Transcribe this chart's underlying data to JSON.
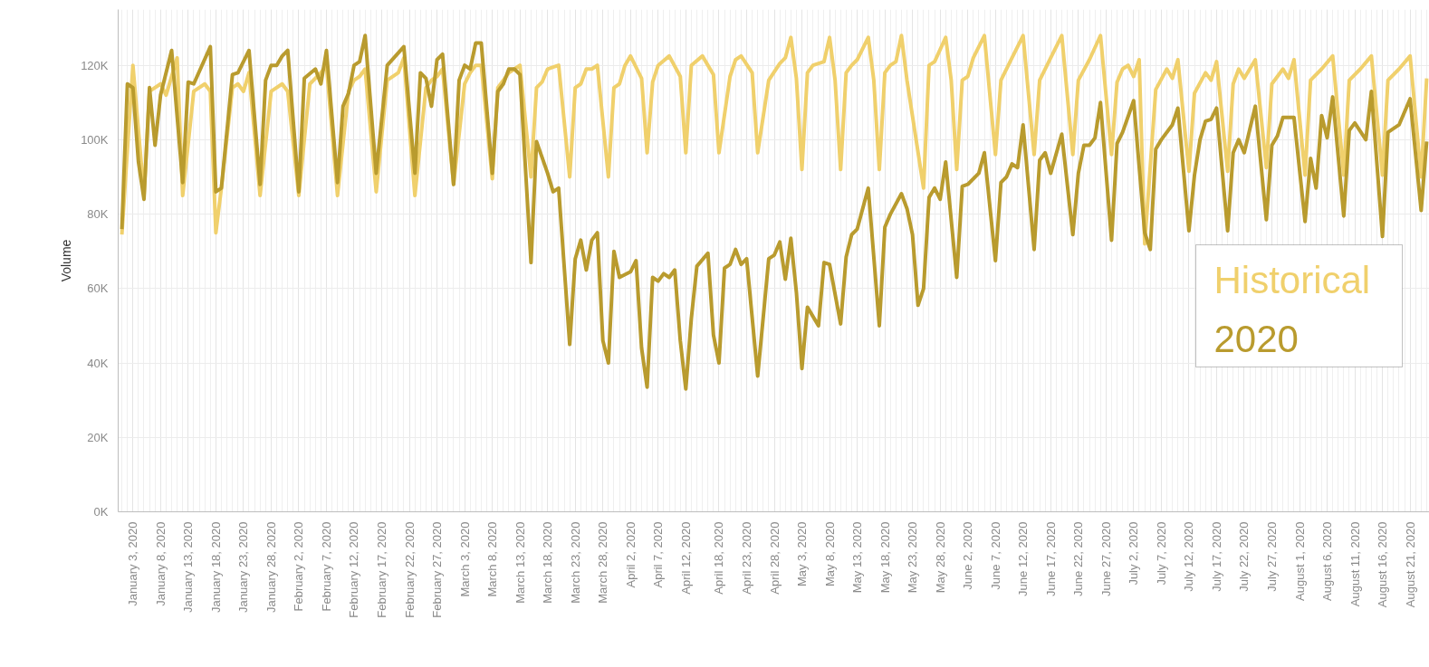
{
  "chart_data": {
    "type": "line",
    "ylabel": "Volume",
    "ylim": [
      0,
      135
    ],
    "yticks": [
      {
        "value": 0,
        "label": "0K"
      },
      {
        "value": 20,
        "label": "20K"
      },
      {
        "value": 40,
        "label": "40K"
      },
      {
        "value": 60,
        "label": "60K"
      },
      {
        "value": 80,
        "label": "80K"
      },
      {
        "value": 100,
        "label": "100K"
      },
      {
        "value": 120,
        "label": "120K"
      }
    ],
    "xlim": [
      "2019-12-31T08:00",
      "2020-08-24T12:00"
    ],
    "xticks": [
      {
        "value": "2020-01-03",
        "label": "January 3, 2020"
      },
      {
        "value": "2020-01-08",
        "label": "January 8, 2020"
      },
      {
        "value": "2020-01-13",
        "label": "January 13, 2020"
      },
      {
        "value": "2020-01-18",
        "label": "January 18, 2020"
      },
      {
        "value": "2020-01-23",
        "label": "January 23, 2020"
      },
      {
        "value": "2020-01-28",
        "label": "January 28, 2020"
      },
      {
        "value": "2020-02-02",
        "label": "February 2, 2020"
      },
      {
        "value": "2020-02-07",
        "label": "February 7, 2020"
      },
      {
        "value": "2020-02-12",
        "label": "February 12, 2020"
      },
      {
        "value": "2020-02-17",
        "label": "February 17, 2020"
      },
      {
        "value": "2020-02-22",
        "label": "February 22, 2020"
      },
      {
        "value": "2020-02-27",
        "label": "February 27, 2020"
      },
      {
        "value": "2020-03-03",
        "label": "March 3, 2020"
      },
      {
        "value": "2020-03-08",
        "label": "March 8, 2020"
      },
      {
        "value": "2020-03-13",
        "label": "March 13, 2020"
      },
      {
        "value": "2020-03-18",
        "label": "March 18, 2020"
      },
      {
        "value": "2020-03-23",
        "label": "March 23, 2020"
      },
      {
        "value": "2020-03-28",
        "label": "March 28, 2020"
      },
      {
        "value": "2020-04-02",
        "label": "April 2, 2020"
      },
      {
        "value": "2020-04-07",
        "label": "April 7, 2020"
      },
      {
        "value": "2020-04-12",
        "label": "April 12, 2020"
      },
      {
        "value": "2020-04-18",
        "label": "April 18, 2020"
      },
      {
        "value": "2020-04-23",
        "label": "April 23, 2020"
      },
      {
        "value": "2020-04-28",
        "label": "April 28, 2020"
      },
      {
        "value": "2020-05-03",
        "label": "May 3, 2020"
      },
      {
        "value": "2020-05-08",
        "label": "May 8, 2020"
      },
      {
        "value": "2020-05-13",
        "label": "May 13, 2020"
      },
      {
        "value": "2020-05-18",
        "label": "May 18, 2020"
      },
      {
        "value": "2020-05-23",
        "label": "May 23, 2020"
      },
      {
        "value": "2020-05-28",
        "label": "May 28, 2020"
      },
      {
        "value": "2020-06-02",
        "label": "June 2, 2020"
      },
      {
        "value": "2020-06-07",
        "label": "June 7, 2020"
      },
      {
        "value": "2020-06-12",
        "label": "June 12, 2020"
      },
      {
        "value": "2020-06-17",
        "label": "June 17, 2020"
      },
      {
        "value": "2020-06-22",
        "label": "June 22, 2020"
      },
      {
        "value": "2020-06-27",
        "label": "June 27, 2020"
      },
      {
        "value": "2020-07-02",
        "label": "July 2, 2020"
      },
      {
        "value": "2020-07-07",
        "label": "July 7, 2020"
      },
      {
        "value": "2020-07-12",
        "label": "July 12, 2020"
      },
      {
        "value": "2020-07-17",
        "label": "July 17, 2020"
      },
      {
        "value": "2020-07-22",
        "label": "July 22, 2020"
      },
      {
        "value": "2020-07-27",
        "label": "July 27, 2020"
      },
      {
        "value": "2020-08-01",
        "label": "August 1, 2020"
      },
      {
        "value": "2020-08-06",
        "label": "August 6, 2020"
      },
      {
        "value": "2020-08-11",
        "label": "August 11, 2020"
      },
      {
        "value": "2020-08-16",
        "label": "August 16, 2020"
      },
      {
        "value": "2020-08-21",
        "label": "August 21, 2020"
      }
    ],
    "grid": true,
    "legend": "right",
    "line_style": "solid",
    "marker": "none",
    "series": [
      {
        "name": "Historical",
        "color": "#f0d06c",
        "x": [
          "2020-01-01",
          "2020-01-03",
          "2020-01-05",
          "2020-01-06",
          "2020-01-08",
          "2020-01-09",
          "2020-01-11",
          "2020-01-12",
          "2020-01-14",
          "2020-01-16",
          "2020-01-17",
          "2020-01-18",
          "2020-01-19",
          "2020-01-21",
          "2020-01-22",
          "2020-01-23",
          "2020-01-24",
          "2020-01-26",
          "2020-01-28",
          "2020-01-30",
          "2020-01-31",
          "2020-02-02",
          "2020-02-04",
          "2020-02-06",
          "2020-02-07",
          "2020-02-09",
          "2020-02-11",
          "2020-02-12",
          "2020-02-13",
          "2020-02-14",
          "2020-02-16",
          "2020-02-18",
          "2020-02-20",
          "2020-02-21",
          "2020-02-23",
          "2020-02-25",
          "2020-02-26",
          "2020-02-27",
          "2020-02-28",
          "2020-03-01",
          "2020-03-03",
          "2020-03-04",
          "2020-03-05",
          "2020-03-06",
          "2020-03-08",
          "2020-03-09",
          "2020-03-10",
          "2020-03-11",
          "2020-03-12",
          "2020-03-13",
          "2020-03-15",
          "2020-03-16",
          "2020-03-17",
          "2020-03-18",
          "2020-03-19",
          "2020-03-20",
          "2020-03-22",
          "2020-03-23",
          "2020-03-24",
          "2020-03-25",
          "2020-03-26",
          "2020-03-27",
          "2020-03-29",
          "2020-03-30",
          "2020-03-31",
          "2020-04-01",
          "2020-04-02",
          "2020-04-04",
          "2020-04-05",
          "2020-04-06",
          "2020-04-07",
          "2020-04-09",
          "2020-04-11",
          "2020-04-12",
          "2020-04-13",
          "2020-04-15",
          "2020-04-17",
          "2020-04-18",
          "2020-04-20",
          "2020-04-21",
          "2020-04-22",
          "2020-04-24",
          "2020-04-25",
          "2020-04-27",
          "2020-04-29",
          "2020-04-30",
          "2020-05-01",
          "2020-05-02",
          "2020-05-03",
          "2020-05-04",
          "2020-05-05",
          "2020-05-07",
          "2020-05-08",
          "2020-05-09",
          "2020-05-10",
          "2020-05-11",
          "2020-05-12",
          "2020-05-13",
          "2020-05-15",
          "2020-05-16",
          "2020-05-17",
          "2020-05-18",
          "2020-05-19",
          "2020-05-20",
          "2020-05-21",
          "2020-05-22",
          "2020-05-25",
          "2020-05-26",
          "2020-05-27",
          "2020-05-29",
          "2020-05-30",
          "2020-05-31",
          "2020-06-01",
          "2020-06-02",
          "2020-06-03",
          "2020-06-05",
          "2020-06-07",
          "2020-06-08",
          "2020-06-10",
          "2020-06-12",
          "2020-06-14",
          "2020-06-15",
          "2020-06-17",
          "2020-06-19",
          "2020-06-21",
          "2020-06-22",
          "2020-06-24",
          "2020-06-26",
          "2020-06-28",
          "2020-06-29",
          "2020-06-30",
          "2020-07-01",
          "2020-07-02",
          "2020-07-03",
          "2020-07-04",
          "2020-07-06",
          "2020-07-08",
          "2020-07-09",
          "2020-07-10",
          "2020-07-12",
          "2020-07-13",
          "2020-07-15",
          "2020-07-16",
          "2020-07-17",
          "2020-07-19",
          "2020-07-20",
          "2020-07-21",
          "2020-07-22",
          "2020-07-24",
          "2020-07-26",
          "2020-07-27",
          "2020-07-29",
          "2020-07-30",
          "2020-07-31",
          "2020-08-02",
          "2020-08-03",
          "2020-08-05",
          "2020-08-07",
          "2020-08-09",
          "2020-08-10",
          "2020-08-12",
          "2020-08-14",
          "2020-08-16",
          "2020-08-17",
          "2020-08-19",
          "2020-08-21",
          "2020-08-23",
          "2020-08-24"
        ],
        "values": [
          74.5,
          120,
          85,
          113,
          115,
          112,
          122,
          85,
          113,
          115,
          113,
          75,
          87,
          114,
          115,
          113,
          118,
          85,
          113,
          115,
          113,
          85,
          115,
          118,
          120,
          85,
          113,
          116,
          117,
          119,
          86,
          116,
          118,
          122,
          85,
          114,
          116,
          117,
          119,
          88,
          115,
          118,
          120,
          120,
          89.5,
          114,
          116,
          118,
          119,
          120,
          90,
          114,
          115.5,
          119,
          119.5,
          120,
          90,
          114,
          115,
          119,
          119,
          120,
          90,
          114,
          115,
          120,
          122.5,
          116.5,
          96.5,
          115.5,
          120,
          122.5,
          117,
          96.5,
          120,
          122.5,
          117.5,
          96.5,
          117,
          121.5,
          122.5,
          118,
          96.5,
          116,
          120.5,
          122,
          127.5,
          116.5,
          92,
          118,
          120,
          121,
          127.5,
          116,
          92,
          118,
          120,
          121.5,
          127.5,
          116,
          92,
          118,
          120,
          121,
          128,
          116,
          87,
          120,
          121,
          127.5,
          116,
          92,
          116,
          117,
          122,
          128,
          96,
          116,
          122,
          128,
          96,
          116,
          122,
          128,
          96,
          116,
          121.5,
          128,
          96,
          115.5,
          119,
          120,
          117,
          121.5,
          72,
          113.5,
          119,
          116.5,
          121.5,
          91.5,
          112.5,
          118,
          116,
          121,
          91.5,
          115,
          119,
          116.5,
          121.5,
          92.5,
          115,
          119,
          116.5,
          121.5,
          90.5,
          116,
          119,
          122.5,
          90.5,
          116,
          119,
          122.5,
          90.5,
          116,
          119,
          122.5,
          90,
          116.5
        ]
      },
      {
        "name": "2020",
        "color": "#b99b2e",
        "x": [
          "2020-01-01",
          "2020-01-02",
          "2020-01-03",
          "2020-01-04",
          "2020-01-05",
          "2020-01-06",
          "2020-01-07",
          "2020-01-08",
          "2020-01-10",
          "2020-01-12",
          "2020-01-13",
          "2020-01-14",
          "2020-01-17",
          "2020-01-18",
          "2020-01-19",
          "2020-01-21",
          "2020-01-22",
          "2020-01-24",
          "2020-01-26",
          "2020-01-27",
          "2020-01-28",
          "2020-01-29",
          "2020-01-30",
          "2020-01-31",
          "2020-02-02",
          "2020-02-03",
          "2020-02-05",
          "2020-02-06",
          "2020-02-07",
          "2020-02-09",
          "2020-02-10",
          "2020-02-11",
          "2020-02-12",
          "2020-02-13",
          "2020-02-14",
          "2020-02-16",
          "2020-02-18",
          "2020-02-21",
          "2020-02-23",
          "2020-02-24",
          "2020-02-25",
          "2020-02-26",
          "2020-02-27",
          "2020-02-28",
          "2020-03-01",
          "2020-03-02",
          "2020-03-03",
          "2020-03-04",
          "2020-03-05",
          "2020-03-06",
          "2020-03-08",
          "2020-03-09",
          "2020-03-10",
          "2020-03-11",
          "2020-03-12",
          "2020-03-13",
          "2020-03-15",
          "2020-03-16",
          "2020-03-18",
          "2020-03-19",
          "2020-03-20",
          "2020-03-22",
          "2020-03-23",
          "2020-03-24",
          "2020-03-25",
          "2020-03-26",
          "2020-03-27",
          "2020-03-28",
          "2020-03-29",
          "2020-03-30",
          "2020-03-31",
          "2020-04-02",
          "2020-04-03",
          "2020-04-04",
          "2020-04-05",
          "2020-04-06",
          "2020-04-07",
          "2020-04-08",
          "2020-04-09",
          "2020-04-10",
          "2020-04-11",
          "2020-04-12",
          "2020-04-13",
          "2020-04-14",
          "2020-04-16",
          "2020-04-17",
          "2020-04-18",
          "2020-04-19",
          "2020-04-20",
          "2020-04-21",
          "2020-04-22",
          "2020-04-23",
          "2020-04-25",
          "2020-04-27",
          "2020-04-28",
          "2020-04-29",
          "2020-04-30",
          "2020-05-01",
          "2020-05-02",
          "2020-05-03",
          "2020-05-04",
          "2020-05-06",
          "2020-05-07",
          "2020-05-08",
          "2020-05-10",
          "2020-05-11",
          "2020-05-12",
          "2020-05-13",
          "2020-05-15",
          "2020-05-17",
          "2020-05-18",
          "2020-05-19",
          "2020-05-21",
          "2020-05-22",
          "2020-05-23",
          "2020-05-24",
          "2020-05-25",
          "2020-05-26",
          "2020-05-27",
          "2020-05-28",
          "2020-05-29",
          "2020-05-31",
          "2020-06-01",
          "2020-06-02",
          "2020-06-04",
          "2020-06-05",
          "2020-06-07",
          "2020-06-08",
          "2020-06-09",
          "2020-06-10",
          "2020-06-11",
          "2020-06-12",
          "2020-06-14",
          "2020-06-15",
          "2020-06-16",
          "2020-06-17",
          "2020-06-19",
          "2020-06-21",
          "2020-06-22",
          "2020-06-23",
          "2020-06-24",
          "2020-06-25",
          "2020-06-26",
          "2020-06-28",
          "2020-06-29",
          "2020-06-30",
          "2020-07-02",
          "2020-07-04",
          "2020-07-05",
          "2020-07-06",
          "2020-07-07",
          "2020-07-09",
          "2020-07-10",
          "2020-07-12",
          "2020-07-13",
          "2020-07-14",
          "2020-07-15",
          "2020-07-16",
          "2020-07-17",
          "2020-07-19",
          "2020-07-20",
          "2020-07-21",
          "2020-07-22",
          "2020-07-24",
          "2020-07-26",
          "2020-07-27",
          "2020-07-28",
          "2020-07-29",
          "2020-07-31",
          "2020-08-02",
          "2020-08-03",
          "2020-08-04",
          "2020-08-05",
          "2020-08-06",
          "2020-08-07",
          "2020-08-09",
          "2020-08-10",
          "2020-08-11",
          "2020-08-13",
          "2020-08-14",
          "2020-08-16",
          "2020-08-17",
          "2020-08-19",
          "2020-08-21",
          "2020-08-23",
          "2020-08-24"
        ],
        "values": [
          76,
          115,
          114,
          94,
          84,
          114,
          98.5,
          112,
          124,
          88.5,
          115.5,
          115,
          125,
          86,
          87,
          117.5,
          118,
          124,
          88,
          116,
          120,
          120,
          122.5,
          124,
          86,
          116.5,
          119,
          115,
          124,
          88.5,
          109,
          112.5,
          120,
          121,
          128,
          91,
          120,
          125,
          91,
          118,
          116.5,
          109,
          121.5,
          123,
          88,
          116,
          120,
          119,
          126,
          126,
          91,
          113,
          115,
          119,
          119,
          117.5,
          67,
          99.5,
          91,
          86,
          87,
          45,
          68,
          73,
          65,
          73,
          75,
          46,
          40,
          70,
          63,
          64.5,
          67.5,
          44,
          33.5,
          63,
          62,
          64,
          63,
          65,
          46,
          33,
          52,
          66,
          69.5,
          47.5,
          40,
          65.5,
          66.5,
          70.5,
          66.5,
          68,
          36.5,
          68,
          69,
          72.5,
          62.5,
          73.5,
          59,
          38.5,
          55,
          50,
          67,
          66.5,
          50.5,
          68.5,
          74.5,
          76,
          87,
          50,
          76.5,
          80,
          85.5,
          81.5,
          74.5,
          55.5,
          60,
          84.5,
          87,
          84,
          94,
          63,
          87.5,
          88,
          91,
          96.5,
          67.5,
          88.5,
          90,
          93.5,
          92.5,
          104,
          70.5,
          94.5,
          96.5,
          91,
          101.5,
          74.5,
          91,
          98.5,
          98.5,
          100.5,
          110,
          73,
          99,
          102,
          110.5,
          75,
          70.5,
          97.5,
          100,
          104,
          108.5,
          75.5,
          90.5,
          100,
          105,
          105.5,
          108.5,
          75.5,
          96.5,
          100,
          96.5,
          109,
          78.5,
          98.5,
          101,
          106,
          106,
          78,
          95,
          87,
          106.5,
          100.5,
          111.5,
          79.5,
          102.5,
          104.5,
          100,
          113,
          74,
          102,
          104,
          111,
          81,
          99.5
        ]
      }
    ]
  }
}
